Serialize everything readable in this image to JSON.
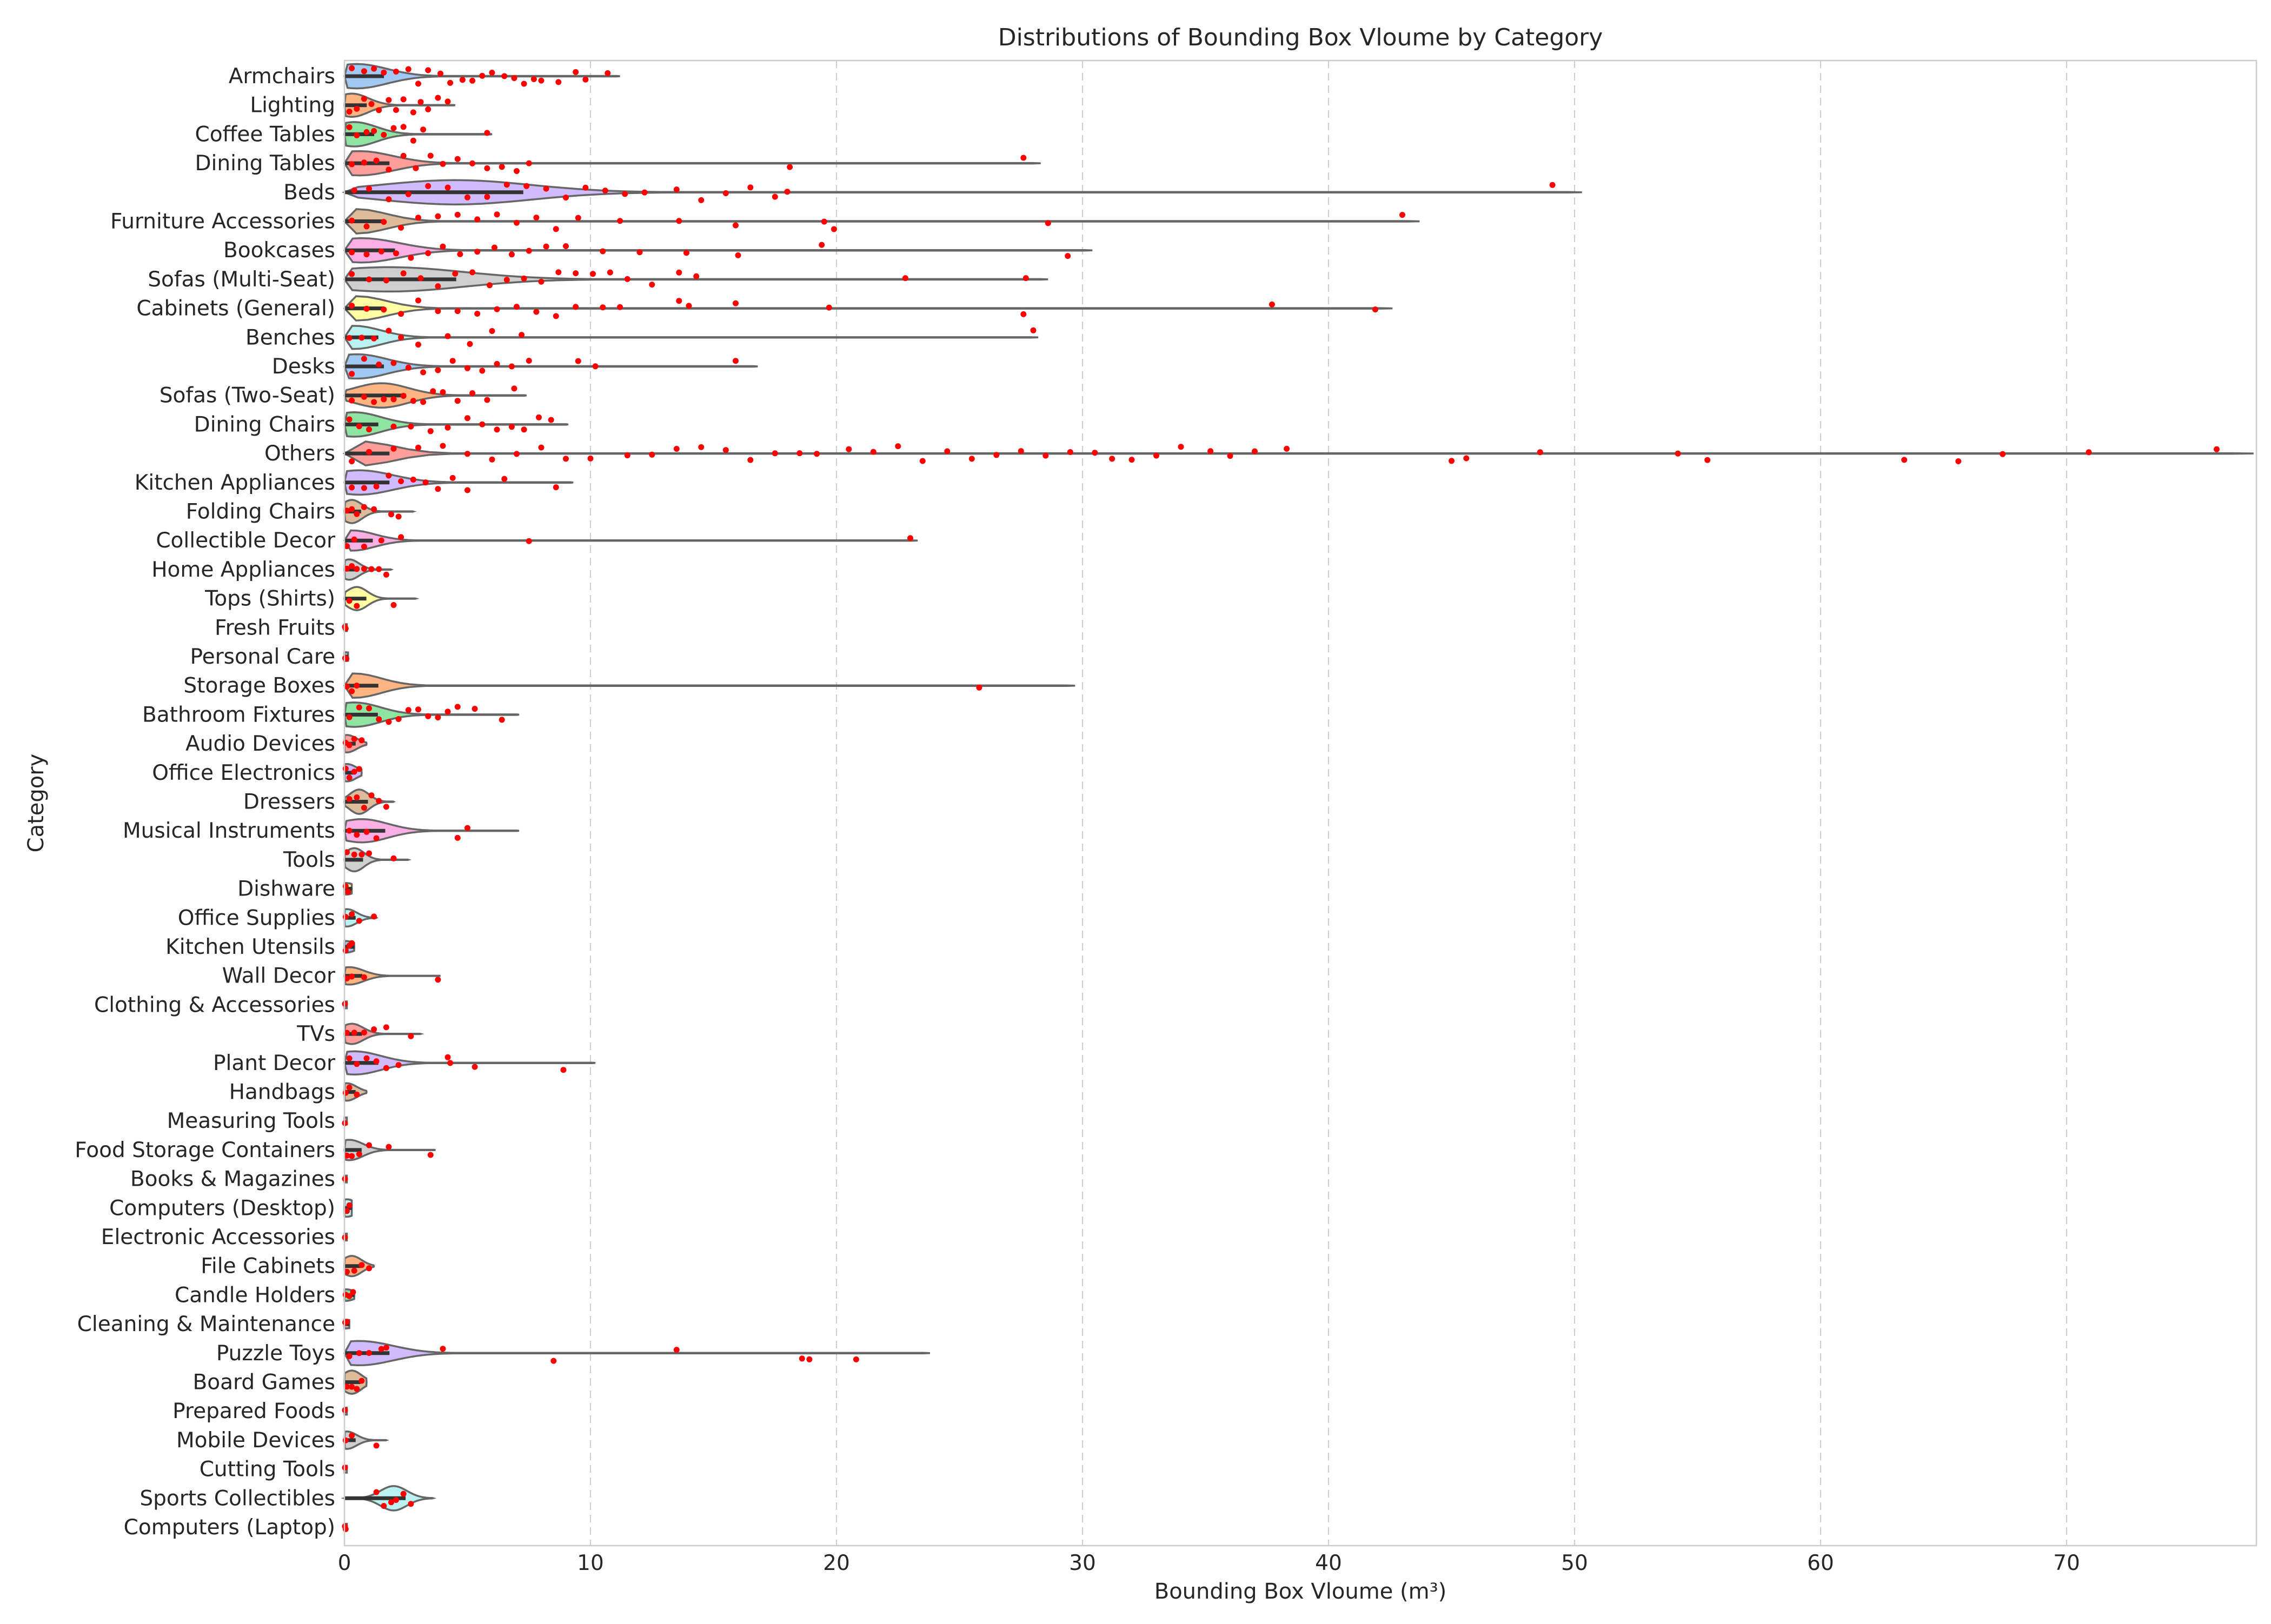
{
  "chart_data": {
    "type": "violin",
    "title": "Distributions of Bounding Box Vloume by Category",
    "xlabel": "Bounding Box Vloume (m³)",
    "ylabel": "Category",
    "xlim": [
      0,
      80
    ],
    "xticks": [
      0,
      10,
      20,
      30,
      40,
      50,
      60,
      70
    ],
    "grid": "vertical dashed",
    "legend": "none",
    "point_color": "#ff0000",
    "outline_color": "#666666",
    "categories": [
      {
        "name": "Armchairs",
        "min": 0,
        "max": 11.2,
        "mode": 0.5,
        "density": 0.45,
        "color": "#a1c9f4",
        "points": [
          0.3,
          0.8,
          1.2,
          1.6,
          2.1,
          2.6,
          3.0,
          3.4,
          3.9,
          4.3,
          4.8,
          5.2,
          5.6,
          6.0,
          6.5,
          6.9,
          7.3,
          7.7,
          8.0,
          8.7,
          9.4,
          9.8,
          10.7
        ]
      },
      {
        "name": "Lighting",
        "min": 0,
        "max": 4.5,
        "mode": 0.3,
        "density": 0.4,
        "color": "#ffb482",
        "points": [
          0.2,
          0.5,
          0.8,
          1.1,
          1.4,
          1.8,
          2.1,
          2.4,
          2.8,
          3.1,
          3.4,
          3.8,
          4.2
        ]
      },
      {
        "name": "Coffee Tables",
        "min": 0,
        "max": 6.0,
        "mode": 0.4,
        "density": 0.45,
        "color": "#8de5a1",
        "points": [
          0.2,
          0.5,
          0.9,
          1.2,
          1.6,
          2.0,
          2.4,
          2.8,
          3.2,
          5.8
        ]
      },
      {
        "name": "Dining Tables",
        "min": 0,
        "max": 28.3,
        "mode": 0.6,
        "density": 0.45,
        "color": "#ff9f9b",
        "points": [
          0.3,
          0.8,
          1.3,
          1.8,
          2.4,
          2.9,
          3.5,
          4.0,
          4.6,
          5.2,
          5.8,
          6.4,
          7.0,
          7.5,
          18.1,
          27.6
        ]
      },
      {
        "name": "Beds",
        "min": 0,
        "max": 50.3,
        "mode": 4.5,
        "density": 0.45,
        "color": "#d0bbff",
        "points": [
          0.4,
          1.0,
          1.8,
          2.6,
          3.4,
          4.2,
          5.0,
          5.8,
          6.6,
          7.4,
          8.2,
          9.0,
          9.8,
          10.6,
          11.4,
          12.2,
          13.5,
          14.5,
          15.5,
          16.5,
          17.5,
          18.0,
          49.1
        ]
      },
      {
        "name": "Furniture Accessories",
        "min": 0,
        "max": 43.7,
        "mode": 0.5,
        "density": 0.45,
        "color": "#debb9b",
        "points": [
          0.3,
          0.9,
          1.6,
          2.3,
          3.0,
          3.8,
          4.6,
          5.4,
          6.2,
          7.0,
          7.8,
          8.6,
          9.5,
          11.2,
          13.6,
          15.9,
          19.5,
          19.9,
          28.6,
          43.0
        ]
      },
      {
        "name": "Bookcases",
        "min": 0,
        "max": 30.4,
        "mode": 0.7,
        "density": 0.45,
        "color": "#fab0e4",
        "points": [
          0.3,
          0.9,
          1.5,
          2.1,
          2.7,
          3.4,
          4.0,
          4.7,
          5.4,
          6.1,
          6.8,
          7.5,
          8.2,
          9.0,
          10.5,
          12.0,
          13.9,
          16.0,
          19.4,
          29.4
        ]
      },
      {
        "name": "Sofas (Multi-Seat)",
        "min": 0,
        "max": 28.6,
        "mode": 1.8,
        "density": 0.45,
        "color": "#cfcfcf",
        "points": [
          0.3,
          1.0,
          1.7,
          2.4,
          3.1,
          3.8,
          4.5,
          5.2,
          5.9,
          6.6,
          7.3,
          8.0,
          8.7,
          9.4,
          10.1,
          10.8,
          11.5,
          12.5,
          13.6,
          14.3,
          22.8,
          27.7
        ]
      },
      {
        "name": "Cabinets (General)",
        "min": 0,
        "max": 42.6,
        "mode": 0.5,
        "density": 0.45,
        "color": "#fffea3",
        "points": [
          0.3,
          0.9,
          1.6,
          2.3,
          3.0,
          3.8,
          4.6,
          5.4,
          6.2,
          7.0,
          7.8,
          8.6,
          9.4,
          10.5,
          11.2,
          13.6,
          14.0,
          15.9,
          19.7,
          27.6,
          37.7,
          41.9
        ]
      },
      {
        "name": "Benches",
        "min": 0,
        "max": 28.2,
        "mode": 0.4,
        "density": 0.4,
        "color": "#b9f2f0",
        "points": [
          0.2,
          0.7,
          1.2,
          1.8,
          2.3,
          3.0,
          4.2,
          5.1,
          6.0,
          7.2,
          28.0
        ]
      },
      {
        "name": "Desks",
        "min": 0,
        "max": 16.8,
        "mode": 0.5,
        "density": 0.45,
        "color": "#a1c9f4",
        "points": [
          0.3,
          0.8,
          1.4,
          2.0,
          2.6,
          3.2,
          3.8,
          4.4,
          5.0,
          5.6,
          6.2,
          6.8,
          7.5,
          9.5,
          10.2,
          15.9
        ]
      },
      {
        "name": "Sofas (Two-Seat)",
        "min": 0,
        "max": 7.4,
        "mode": 1.5,
        "density": 0.45,
        "color": "#ffb482",
        "points": [
          0.3,
          0.8,
          1.2,
          1.6,
          2.0,
          2.4,
          2.8,
          3.2,
          3.6,
          4.0,
          4.6,
          5.2,
          5.8,
          6.9
        ]
      },
      {
        "name": "Dining Chairs",
        "min": 0,
        "max": 9.1,
        "mode": 0.4,
        "density": 0.45,
        "color": "#8de5a1",
        "points": [
          0.2,
          0.6,
          1.0,
          2.0,
          2.7,
          3.5,
          4.2,
          5.0,
          5.6,
          6.2,
          6.8,
          7.3,
          7.9,
          8.4
        ]
      },
      {
        "name": "Others",
        "min": 0,
        "max": 77.6,
        "mode": 0.6,
        "density": 0.45,
        "color": "#ff9f9b",
        "points": [
          0.3,
          1.0,
          2.0,
          3.0,
          4.0,
          5.0,
          6.0,
          7.0,
          8.0,
          9.0,
          10.0,
          11.5,
          12.5,
          13.5,
          14.5,
          15.5,
          16.5,
          17.5,
          18.5,
          19.2,
          20.5,
          21.5,
          22.5,
          23.5,
          24.5,
          25.5,
          26.5,
          27.5,
          28.5,
          29.5,
          30.5,
          31.2,
          32.0,
          33.0,
          34.0,
          35.2,
          36.0,
          37.0,
          38.3,
          45.0,
          45.6,
          48.6,
          54.2,
          55.4,
          63.4,
          65.6,
          67.4,
          70.9,
          76.1
        ]
      },
      {
        "name": "Kitchen Appliances",
        "min": 0,
        "max": 9.3,
        "mode": 0.6,
        "density": 0.45,
        "color": "#d0bbff",
        "points": [
          0.3,
          0.8,
          1.3,
          1.8,
          2.3,
          2.8,
          3.3,
          3.8,
          4.4,
          5.0,
          6.5,
          8.6
        ]
      },
      {
        "name": "Folding Chairs",
        "min": 0,
        "max": 2.8,
        "mode": 0.3,
        "density": 0.4,
        "color": "#debb9b",
        "points": [
          0.1,
          0.3,
          0.5,
          0.8,
          1.2,
          1.9,
          2.2
        ]
      },
      {
        "name": "Collectible Decor",
        "min": 0,
        "max": 23.3,
        "mode": 0.3,
        "density": 0.35,
        "color": "#fab0e4",
        "points": [
          0.1,
          0.4,
          0.8,
          1.5,
          2.3,
          7.5,
          23.0
        ]
      },
      {
        "name": "Home Appliances",
        "min": 0,
        "max": 1.9,
        "mode": 0.2,
        "density": 0.35,
        "color": "#cfcfcf",
        "points": [
          0.1,
          0.3,
          0.5,
          0.8,
          1.1,
          1.4,
          1.7
        ]
      },
      {
        "name": "Tops (Shirts)",
        "min": 0,
        "max": 2.9,
        "mode": 0.5,
        "density": 0.4,
        "color": "#fffea3",
        "points": [
          0.2,
          0.5,
          2.0
        ]
      },
      {
        "name": "Fresh Fruits",
        "min": 0,
        "max": 0.1,
        "mode": 0.02,
        "density": 0.12,
        "color": "#b9f2f0",
        "points": [
          0.02,
          0.05
        ]
      },
      {
        "name": "Personal Care",
        "min": 0,
        "max": 0.15,
        "mode": 0.03,
        "density": 0.15,
        "color": "#a1c9f4",
        "points": [
          0.03,
          0.08
        ]
      },
      {
        "name": "Storage Boxes",
        "min": 0,
        "max": 29.7,
        "mode": 0.4,
        "density": 0.45,
        "color": "#ffb482",
        "points": [
          0.1,
          0.3,
          0.5,
          25.8
        ]
      },
      {
        "name": "Bathroom Fixtures",
        "min": 0,
        "max": 7.1,
        "mode": 0.4,
        "density": 0.45,
        "color": "#8de5a1",
        "points": [
          0.2,
          0.6,
          1.0,
          1.4,
          1.8,
          2.2,
          2.6,
          3.0,
          3.4,
          3.8,
          4.2,
          4.6,
          5.3,
          6.4
        ]
      },
      {
        "name": "Audio Devices",
        "min": 0,
        "max": 0.9,
        "mode": 0.1,
        "density": 0.3,
        "color": "#ff9f9b",
        "points": [
          0.05,
          0.2,
          0.4,
          0.7
        ]
      },
      {
        "name": "Office Electronics",
        "min": 0,
        "max": 0.7,
        "mode": 0.1,
        "density": 0.3,
        "color": "#d0bbff",
        "points": [
          0.05,
          0.2,
          0.4,
          0.6
        ]
      },
      {
        "name": "Dressers",
        "min": 0,
        "max": 2.0,
        "mode": 0.6,
        "density": 0.45,
        "color": "#debb9b",
        "points": [
          0.2,
          0.5,
          0.8,
          1.1,
          1.4,
          1.7
        ]
      },
      {
        "name": "Musical Instruments",
        "min": 0,
        "max": 7.1,
        "mode": 0.7,
        "density": 0.4,
        "color": "#fab0e4",
        "points": [
          0.2,
          0.5,
          0.9,
          1.3,
          4.6,
          5.0
        ]
      },
      {
        "name": "Tools",
        "min": 0,
        "max": 2.6,
        "mode": 0.4,
        "density": 0.4,
        "color": "#cfcfcf",
        "points": [
          0.1,
          0.4,
          0.7,
          1.0,
          2.0
        ]
      },
      {
        "name": "Dishware",
        "min": 0,
        "max": 0.3,
        "mode": 0.05,
        "density": 0.2,
        "color": "#fffea3",
        "points": [
          0.05,
          0.15
        ]
      },
      {
        "name": "Office Supplies",
        "min": 0,
        "max": 1.3,
        "mode": 0.1,
        "density": 0.3,
        "color": "#b9f2f0",
        "points": [
          0.05,
          0.3,
          0.6,
          1.2
        ]
      },
      {
        "name": "Kitchen Utensils",
        "min": 0,
        "max": 0.4,
        "mode": 0.05,
        "density": 0.2,
        "color": "#a1c9f4",
        "points": [
          0.05,
          0.2,
          0.3
        ]
      },
      {
        "name": "Wall Decor",
        "min": 0,
        "max": 3.9,
        "mode": 0.2,
        "density": 0.3,
        "color": "#ffb482",
        "points": [
          0.1,
          0.3,
          0.8,
          3.8
        ]
      },
      {
        "name": "Clothing & Accessories",
        "min": 0,
        "max": 0.1,
        "mode": 0.02,
        "density": 0.12,
        "color": "#8de5a1",
        "points": [
          0.02
        ]
      },
      {
        "name": "TVs",
        "min": 0,
        "max": 3.1,
        "mode": 0.3,
        "density": 0.35,
        "color": "#ff9f9b",
        "points": [
          0.1,
          0.4,
          0.8,
          1.2,
          1.7,
          2.7
        ]
      },
      {
        "name": "Plant Decor",
        "min": 0,
        "max": 10.2,
        "mode": 0.4,
        "density": 0.4,
        "color": "#d0bbff",
        "points": [
          0.2,
          0.5,
          0.9,
          1.3,
          1.7,
          2.2,
          4.2,
          4.3,
          5.3,
          8.9
        ]
      },
      {
        "name": "Handbags",
        "min": 0,
        "max": 0.9,
        "mode": 0.1,
        "density": 0.3,
        "color": "#debb9b",
        "points": [
          0.05,
          0.2,
          0.5
        ]
      },
      {
        "name": "Measuring Tools",
        "min": 0,
        "max": 0.1,
        "mode": 0.02,
        "density": 0.12,
        "color": "#fab0e4",
        "points": [
          0.02
        ]
      },
      {
        "name": "Food Storage Containers",
        "min": 0,
        "max": 3.7,
        "mode": 0.2,
        "density": 0.35,
        "color": "#cfcfcf",
        "points": [
          0.1,
          0.3,
          0.6,
          1.0,
          1.8,
          3.5
        ]
      },
      {
        "name": "Books & Magazines",
        "min": 0,
        "max": 0.1,
        "mode": 0.02,
        "density": 0.12,
        "color": "#fffea3",
        "points": [
          0.02
        ]
      },
      {
        "name": "Computers (Desktop)",
        "min": 0,
        "max": 0.3,
        "mode": 0.1,
        "density": 0.3,
        "color": "#b9f2f0",
        "points": [
          0.1,
          0.2
        ]
      },
      {
        "name": "Electronic Accessories",
        "min": 0,
        "max": 0.1,
        "mode": 0.02,
        "density": 0.12,
        "color": "#a1c9f4",
        "points": [
          0.02
        ]
      },
      {
        "name": "File Cabinets",
        "min": 0,
        "max": 1.2,
        "mode": 0.3,
        "density": 0.35,
        "color": "#ffb482",
        "points": [
          0.1,
          0.4,
          0.7,
          1.0
        ]
      },
      {
        "name": "Candle Holders",
        "min": 0,
        "max": 0.4,
        "mode": 0.05,
        "density": 0.2,
        "color": "#8de5a1",
        "points": [
          0.05,
          0.2,
          0.35
        ]
      },
      {
        "name": "Cleaning & Maintenance",
        "min": 0,
        "max": 0.2,
        "mode": 0.03,
        "density": 0.15,
        "color": "#ff9f9b",
        "points": [
          0.03,
          0.1
        ]
      },
      {
        "name": "Puzzle Toys",
        "min": 0,
        "max": 23.8,
        "mode": 0.6,
        "density": 0.45,
        "color": "#d0bbff",
        "points": [
          0.2,
          0.6,
          1.0,
          1.5,
          1.7,
          4.0,
          8.5,
          13.5,
          18.6,
          18.9,
          20.8
        ]
      },
      {
        "name": "Board Games",
        "min": 0,
        "max": 0.9,
        "mode": 0.3,
        "density": 0.4,
        "color": "#debb9b",
        "points": [
          0.1,
          0.3,
          0.5,
          0.7
        ]
      },
      {
        "name": "Prepared Foods",
        "min": 0,
        "max": 0.1,
        "mode": 0.02,
        "density": 0.12,
        "color": "#fab0e4",
        "points": [
          0.02
        ]
      },
      {
        "name": "Mobile Devices",
        "min": 0,
        "max": 1.7,
        "mode": 0.1,
        "density": 0.3,
        "color": "#cfcfcf",
        "points": [
          0.05,
          0.3,
          1.3
        ]
      },
      {
        "name": "Cutting Tools",
        "min": 0,
        "max": 0.1,
        "mode": 0.02,
        "density": 0.12,
        "color": "#fffea3",
        "points": [
          0.02
        ]
      },
      {
        "name": "Sports Collectibles",
        "min": 0,
        "max": 3.6,
        "mode": 2.0,
        "density": 0.45,
        "color": "#b9f2f0",
        "points": [
          1.3,
          1.6,
          1.9,
          2.1,
          2.4,
          2.7
        ]
      },
      {
        "name": "Computers (Laptop)",
        "min": 0,
        "max": 0.1,
        "mode": 0.02,
        "density": 0.12,
        "color": "#a1c9f4",
        "points": [
          0.02,
          0.05
        ]
      }
    ]
  }
}
